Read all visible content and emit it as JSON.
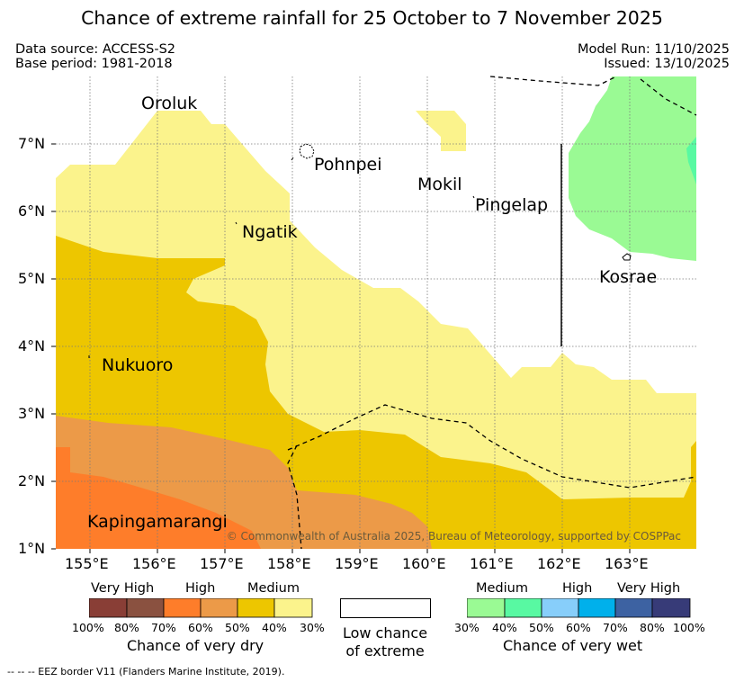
{
  "title": "Chance of extreme rainfall for 25 October to 7 November 2025",
  "meta": {
    "data_source": "Data source: ACCESS-S2",
    "base_period": "Base period: 1981-2018",
    "model_run": "Model Run: 11/10/2025",
    "issued": "Issued: 13/10/2025"
  },
  "map": {
    "lon_range": [
      154.5,
      164
    ],
    "lat_range": [
      1,
      8
    ],
    "lon_ticks": [
      "155°E",
      "156°E",
      "157°E",
      "158°E",
      "159°E",
      "160°E",
      "161°E",
      "162°E",
      "163°E"
    ],
    "lat_ticks": [
      "1°N",
      "2°N",
      "3°N",
      "4°N",
      "5°N",
      "6°N",
      "7°N"
    ],
    "places": {
      "oroluk": "Oroluk",
      "pohnpei": "Pohnpei",
      "mokil": "Mokil",
      "pingelap": "Pingelap",
      "ngatik": "Ngatik",
      "kosrae": "Kosrae",
      "nukuoro": "Nukuoro",
      "kapingamarangi": "Kapingamarangi"
    },
    "copyright": "© Commonwealth of Australia 2025, Bureau of Meteorology, supported by COSPPac",
    "colors": {
      "medium_dry": "#fbf38c",
      "high_dry_50": "#edc600",
      "high_dry_60": "#ec9a48",
      "high_dry_70": "#fe7d2a",
      "medium_wet": "#9afa94",
      "medium_wet_40": "#58f9a2"
    }
  },
  "legend": {
    "dry": {
      "levels": [
        "Very High",
        "High",
        "Medium"
      ],
      "colors": [
        "#893e36",
        "#8a5140",
        "#fe7d2a",
        "#ec9a48",
        "#edc600",
        "#fbf38c"
      ],
      "ticks": [
        "100%",
        "80%",
        "70%",
        "60%",
        "50%",
        "40%",
        "30%"
      ],
      "caption": "Chance of very dry"
    },
    "low": {
      "line1": "Low chance",
      "line2": "of extreme"
    },
    "wet": {
      "levels": [
        "Medium",
        "High",
        "Very High"
      ],
      "colors": [
        "#9afa94",
        "#58f9a2",
        "#87cefa",
        "#00b0eb",
        "#3d62a2",
        "#373b78"
      ],
      "ticks": [
        "30%",
        "40%",
        "50%",
        "60%",
        "70%",
        "80%",
        "100%"
      ],
      "caption": "Chance of very wet"
    }
  },
  "eez_note": "--  --  -- EEZ border V11 (Flanders Marine Institute, 2019)."
}
